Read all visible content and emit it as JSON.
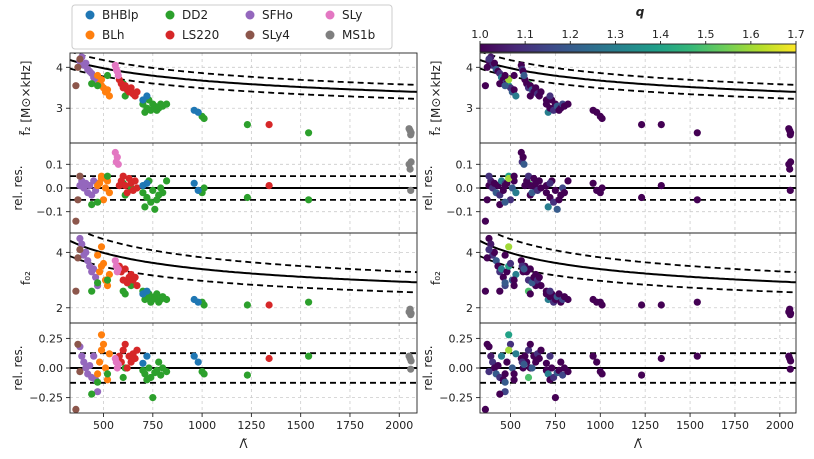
{
  "figure": {
    "xlabel": "Λ̃",
    "colorbar_label": "q",
    "colorbar_ticks": [
      "1.0",
      "1.1",
      "1.2",
      "1.3",
      "1.4",
      "1.5",
      "1.6",
      "1.7"
    ],
    "panel_ylabels": [
      "f̃₂ [M⊙×kHz]",
      "rel. res.",
      "f₀₂",
      "rel. res."
    ],
    "xticks": [
      "500",
      "750",
      "1000",
      "1250",
      "1500",
      "1750",
      "2000"
    ]
  },
  "chart_data": {
    "type": "scatter",
    "x_range": [
      330,
      2090
    ],
    "x_ticks": [
      500,
      750,
      1000,
      1250,
      1500,
      1750,
      2000
    ],
    "colorbar": {
      "label": "q",
      "range": [
        1.0,
        1.7
      ],
      "colormap": "viridis"
    },
    "legend": [
      {
        "name": "BHBlp",
        "color": "#1f77b4"
      },
      {
        "name": "BLh",
        "color": "#ff7f0e"
      },
      {
        "name": "DD2",
        "color": "#2ca02c"
      },
      {
        "name": "LS220",
        "color": "#d62728"
      },
      {
        "name": "SFHo",
        "color": "#9467bd"
      },
      {
        "name": "SLy4",
        "color": "#8c564b"
      },
      {
        "name": "SLy",
        "color": "#e377c2"
      },
      {
        "name": "MS1b",
        "color": "#7f7f7f"
      }
    ],
    "panels": [
      {
        "key": "f2",
        "ylabel": "f̃₂ [M⊙×kHz]",
        "ylim": [
          2.15,
          4.35
        ],
        "yticks": [
          3,
          4
        ],
        "fit": {
          "a": 1.75,
          "b": 45,
          "alpha": 0.21,
          "band": 0.05,
          "type": "ratio"
        }
      },
      {
        "key": "res_f2",
        "ylabel": "rel. res.",
        "ylim": [
          -0.19,
          0.19
        ],
        "yticks": [
          -0.1,
          0.0,
          0.1
        ],
        "fit": {
          "band": 0.05,
          "type": "residual"
        }
      },
      {
        "key": "f02",
        "ylabel": "f₀₂",
        "ylim": [
          1.45,
          4.7
        ],
        "yticks": [
          2,
          4
        ],
        "fit": {
          "a": 1.45,
          "b": 16,
          "alpha": 0.38,
          "band": 0.125,
          "type": "ratio"
        }
      },
      {
        "key": "res_f02",
        "ylabel": "rel. res.",
        "ylim": [
          -0.38,
          0.38
        ],
        "yticks": [
          -0.25,
          0.0,
          0.25
        ],
        "fit": {
          "band": 0.125,
          "type": "residual"
        }
      }
    ],
    "points": [
      {
        "eos": "SFHo",
        "x": 380,
        "q": 1.0,
        "f2": 4.15,
        "r1": 0.01,
        "f02": 4.5,
        "r2": 0.18
      },
      {
        "eos": "SFHo",
        "x": 390,
        "q": 1.05,
        "f2": 4.25,
        "r1": 0.03,
        "f02": 4.3,
        "r2": 0.1
      },
      {
        "eos": "SFHo",
        "x": 400,
        "q": 1.1,
        "f2": 4.05,
        "r1": 0.0,
        "f02": 3.9,
        "r2": 0.05
      },
      {
        "eos": "SFHo",
        "x": 410,
        "q": 1.0,
        "f2": 4.1,
        "r1": 0.02,
        "f02": 4.0,
        "r2": 0.0
      },
      {
        "eos": "SFHo",
        "x": 420,
        "q": 1.2,
        "f2": 3.95,
        "r1": -0.02,
        "f02": 3.7,
        "r2": -0.05
      },
      {
        "eos": "SFHo",
        "x": 430,
        "q": 1.0,
        "f2": 3.9,
        "r1": 0.01,
        "f02": 3.5,
        "r2": 0.02
      },
      {
        "eos": "SFHo",
        "x": 440,
        "q": 1.1,
        "f2": 3.85,
        "r1": -0.03,
        "f02": 3.3,
        "r2": -0.08
      },
      {
        "eos": "SFHo",
        "x": 450,
        "q": 1.3,
        "f2": 3.75,
        "r1": 0.03,
        "f02": 3.4,
        "r2": 0.1
      },
      {
        "eos": "SFHo",
        "x": 460,
        "q": 1.0,
        "f2": 3.7,
        "r1": -0.01,
        "f02": 3.1,
        "r2": -0.1
      },
      {
        "eos": "SFHo",
        "x": 470,
        "q": 1.15,
        "f2": 3.6,
        "r1": 0.02,
        "f02": 2.8,
        "r2": -0.2
      },
      {
        "eos": "SLy4",
        "x": 360,
        "q": 1.0,
        "f2": 3.55,
        "r1": -0.14,
        "f02": 2.6,
        "r2": -0.35
      },
      {
        "eos": "SLy4",
        "x": 370,
        "q": 1.0,
        "f2": 4.0,
        "r1": -0.05,
        "f02": 3.8,
        "r2": 0.2
      },
      {
        "eos": "SLy4",
        "x": 380,
        "q": 1.1,
        "f2": 4.2,
        "r1": 0.05,
        "f02": 4.1,
        "r2": -0.03
      },
      {
        "eos": "BLh",
        "x": 480,
        "q": 1.0,
        "f2": 3.6,
        "r1": 0.02,
        "f02": 3.3,
        "r2": 0.05
      },
      {
        "eos": "BLh",
        "x": 490,
        "q": 1.4,
        "f2": 3.55,
        "r1": 0.05,
        "f02": 3.5,
        "r2": 0.28
      },
      {
        "eos": "BLh",
        "x": 500,
        "q": 1.1,
        "f2": 3.5,
        "r1": -0.05,
        "f02": 3.6,
        "r2": 0.2
      },
      {
        "eos": "BLh",
        "x": 510,
        "q": 1.2,
        "f2": 3.4,
        "r1": 0.0,
        "f02": 3.0,
        "r2": 0.0
      },
      {
        "eos": "BLh",
        "x": 520,
        "q": 1.0,
        "f2": 3.45,
        "r1": 0.03,
        "f02": 2.8,
        "r2": -0.1
      },
      {
        "eos": "BLh",
        "x": 530,
        "q": 1.3,
        "f2": 3.3,
        "r1": -0.02,
        "f02": 3.2,
        "r2": 0.12
      },
      {
        "eos": "BLh",
        "x": 490,
        "q": 1.6,
        "f2": 3.7,
        "r1": 0.04,
        "f02": 4.2,
        "r2": 0.15
      },
      {
        "eos": "BLh",
        "x": 470,
        "q": 1.0,
        "f2": 3.8,
        "r1": 0.01,
        "f02": 3.9,
        "r2": -0.05
      },
      {
        "eos": "DD2",
        "x": 440,
        "q": 1.0,
        "f2": 3.6,
        "r1": -0.07,
        "f02": 2.6,
        "r2": -0.22
      },
      {
        "eos": "DD2",
        "x": 470,
        "q": 1.2,
        "f2": 3.55,
        "r1": -0.06,
        "f02": 2.9,
        "r2": -0.12
      },
      {
        "eos": "DD2",
        "x": 520,
        "q": 1.0,
        "f2": 3.8,
        "r1": 0.05,
        "f02": 3.0,
        "r2": -0.05
      },
      {
        "eos": "DD2",
        "x": 600,
        "q": 1.5,
        "f2": 3.6,
        "r1": 0.02,
        "f02": 2.6,
        "r2": -0.08
      },
      {
        "eos": "DD2",
        "x": 610,
        "q": 1.0,
        "f2": 3.3,
        "r1": -0.03,
        "f02": 2.5,
        "r2": 0.0
      },
      {
        "eos": "DD2",
        "x": 640,
        "q": 1.0,
        "f2": 3.4,
        "r1": 0.0,
        "f02": 2.8,
        "r2": 0.1
      },
      {
        "eos": "DD2",
        "x": 700,
        "q": 1.0,
        "f2": 3.1,
        "r1": -0.02,
        "f02": 2.6,
        "r2": -0.02
      },
      {
        "eos": "DD2",
        "x": 710,
        "q": 1.3,
        "f2": 2.9,
        "r1": -0.08,
        "f02": 2.3,
        "r2": -0.05
      },
      {
        "eos": "DD2",
        "x": 720,
        "q": 1.0,
        "f2": 3.0,
        "r1": -0.04,
        "f02": 2.4,
        "r2": -0.1
      },
      {
        "eos": "DD2",
        "x": 730,
        "q": 1.0,
        "f2": 3.2,
        "r1": 0.03,
        "f02": 2.5,
        "r2": 0.0
      },
      {
        "eos": "DD2",
        "x": 740,
        "q": 1.1,
        "f2": 2.95,
        "r1": -0.06,
        "f02": 2.2,
        "r2": -0.08
      },
      {
        "eos": "DD2",
        "x": 750,
        "q": 1.0,
        "f2": 3.1,
        "r1": -0.01,
        "f02": 2.3,
        "r2": -0.25
      },
      {
        "eos": "DD2",
        "x": 760,
        "q": 1.2,
        "f2": 3.05,
        "r1": -0.09,
        "f02": 2.4,
        "r2": -0.04
      },
      {
        "eos": "DD2",
        "x": 770,
        "q": 1.0,
        "f2": 2.95,
        "r1": -0.05,
        "f02": 2.5,
        "r2": -0.02
      },
      {
        "eos": "DD2",
        "x": 780,
        "q": 1.0,
        "f2": 3.0,
        "r1": -0.03,
        "f02": 2.2,
        "r2": 0.05
      },
      {
        "eos": "DD2",
        "x": 790,
        "q": 1.15,
        "f2": 3.1,
        "r1": 0.0,
        "f02": 2.3,
        "r2": -0.06
      },
      {
        "eos": "DD2",
        "x": 800,
        "q": 1.0,
        "f2": 3.05,
        "r1": -0.02,
        "f02": 2.4,
        "r2": 0.0
      },
      {
        "eos": "DD2",
        "x": 820,
        "q": 1.0,
        "f2": 3.1,
        "r1": 0.03,
        "f02": 2.3,
        "r2": -0.03
      },
      {
        "eos": "DD2",
        "x": 1000,
        "q": 1.0,
        "f2": 2.8,
        "r1": -0.02,
        "f02": 2.2,
        "r2": -0.03
      },
      {
        "eos": "DD2",
        "x": 1010,
        "q": 1.0,
        "f2": 2.75,
        "r1": 0.0,
        "f02": 2.1,
        "r2": -0.05
      },
      {
        "eos": "DD2",
        "x": 1230,
        "q": 1.0,
        "f2": 2.6,
        "r1": -0.04,
        "f02": 2.1,
        "r2": -0.06
      },
      {
        "eos": "DD2",
        "x": 1540,
        "q": 1.0,
        "f2": 2.4,
        "r1": -0.05,
        "f02": 2.2,
        "r2": 0.1
      },
      {
        "eos": "LS220",
        "x": 590,
        "q": 1.0,
        "f2": 3.6,
        "r1": 0.03,
        "f02": 3.3,
        "r2": 0.05
      },
      {
        "eos": "LS220",
        "x": 600,
        "q": 1.1,
        "f2": 3.5,
        "r1": 0.05,
        "f02": 3.0,
        "r2": 0.15
      },
      {
        "eos": "LS220",
        "x": 610,
        "q": 1.0,
        "f2": 3.55,
        "r1": 0.01,
        "f02": 3.4,
        "r2": 0.2
      },
      {
        "eos": "LS220",
        "x": 620,
        "q": 1.2,
        "f2": 3.45,
        "r1": -0.02,
        "f02": 2.9,
        "r2": 0.0
      },
      {
        "eos": "LS220",
        "x": 630,
        "q": 1.0,
        "f2": 3.4,
        "r1": 0.04,
        "f02": 3.1,
        "r2": 0.1
      },
      {
        "eos": "LS220",
        "x": 640,
        "q": 1.0,
        "f2": 3.5,
        "r1": 0.02,
        "f02": 3.2,
        "r2": 0.05
      },
      {
        "eos": "LS220",
        "x": 650,
        "q": 1.1,
        "f2": 3.35,
        "r1": -0.01,
        "f02": 3.0,
        "r2": 0.12
      },
      {
        "eos": "LS220",
        "x": 660,
        "q": 1.0,
        "f2": 3.3,
        "r1": 0.03,
        "f02": 3.1,
        "r2": 0.08
      },
      {
        "eos": "LS220",
        "x": 670,
        "q": 1.0,
        "f2": 3.4,
        "r1": 0.0,
        "f02": 2.8,
        "r2": 0.15
      },
      {
        "eos": "LS220",
        "x": 580,
        "q": 1.0,
        "f2": 3.7,
        "r1": 0.01,
        "f02": 3.5,
        "r2": 0.1
      },
      {
        "eos": "LS220",
        "x": 1340,
        "q": 1.0,
        "f2": 2.6,
        "r1": 0.01,
        "f02": 2.1,
        "r2": 0.08
      },
      {
        "eos": "BHBlp",
        "x": 700,
        "q": 1.0,
        "f2": 3.2,
        "r1": 0.01,
        "f02": 2.5,
        "r2": 0.04
      },
      {
        "eos": "BHBlp",
        "x": 720,
        "q": 1.1,
        "f2": 3.3,
        "r1": 0.02,
        "f02": 2.6,
        "r2": 0.1
      },
      {
        "eos": "BHBlp",
        "x": 960,
        "q": 1.0,
        "f2": 2.95,
        "r1": 0.02,
        "f02": 2.3,
        "r2": 0.1
      },
      {
        "eos": "BHBlp",
        "x": 980,
        "q": 1.0,
        "f2": 2.9,
        "r1": -0.01,
        "f02": 2.2,
        "r2": 0.05
      },
      {
        "eos": "SLy",
        "x": 560,
        "q": 1.0,
        "f2": 4.05,
        "r1": 0.15,
        "f02": 3.7,
        "r2": 0.08
      },
      {
        "eos": "SLy",
        "x": 565,
        "q": 1.1,
        "f2": 3.95,
        "r1": 0.11,
        "f02": 3.5,
        "r2": 0.05
      },
      {
        "eos": "SLy",
        "x": 570,
        "q": 1.0,
        "f2": 3.9,
        "r1": 0.13,
        "f02": 3.3,
        "r2": 0.0
      },
      {
        "eos": "SLy",
        "x": 575,
        "q": 1.2,
        "f2": 3.8,
        "r1": 0.1,
        "f02": 3.4,
        "r2": 0.03
      },
      {
        "eos": "MS1b",
        "x": 2050,
        "q": 1.0,
        "f2": 2.5,
        "r1": 0.1,
        "f02": 1.85,
        "r2": 0.1
      },
      {
        "eos": "MS1b",
        "x": 2055,
        "q": 1.0,
        "f2": 2.45,
        "r1": 0.08,
        "f02": 1.95,
        "r2": 0.08
      },
      {
        "eos": "MS1b",
        "x": 2060,
        "q": 1.0,
        "f2": 2.4,
        "r1": 0.11,
        "f02": 1.8,
        "r2": 0.06
      },
      {
        "eos": "MS1b",
        "x": 2058,
        "q": 1.0,
        "f2": 2.35,
        "r1": -0.01,
        "f02": 1.75,
        "r2": -0.01
      }
    ]
  }
}
